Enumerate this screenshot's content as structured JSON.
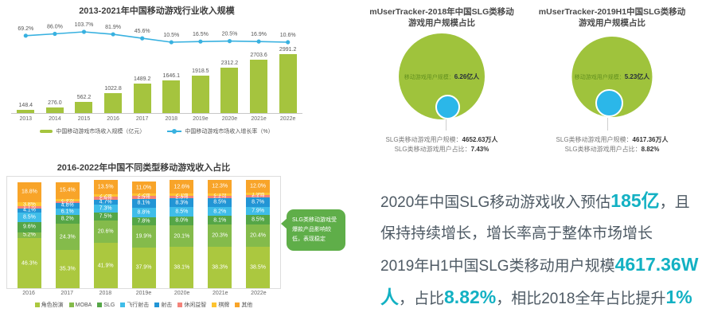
{
  "colors": {
    "brand_green": "#a5c43e",
    "line_blue": "#38b1e0",
    "bubble_green": "#9fc33c",
    "bubble_blue": "#2bb7e9",
    "callout_green": "#5fae49",
    "highlight_teal": "#13b1c3"
  },
  "chart_data": [
    {
      "id": "revenue",
      "type": "bar",
      "title": "2013-2021年中国移动游戏行业收入规模",
      "categories": [
        "2013",
        "2014",
        "2015",
        "2016",
        "2017",
        "2018",
        "2019e",
        "2020e",
        "2021e",
        "2022e"
      ],
      "bar_values": [
        148.4,
        276.0,
        562.2,
        1022.8,
        1489.2,
        1646.1,
        1918.5,
        2312.2,
        2703.6,
        2991.2
      ],
      "bar_labels": [
        "148.4",
        "276.0",
        "562.2",
        "1022.8",
        "1489.2",
        "1646.1",
        "1918.5",
        "2312.2",
        "2703.6",
        "2991.2"
      ],
      "growth_values": [
        69.2,
        86.0,
        103.7,
        81.9,
        45.6,
        10.5,
        16.5,
        20.5,
        16.9,
        10.6
      ],
      "growth_labels": [
        "69.2%",
        "86.0%",
        "103.7%",
        "81.9%",
        "45.6%",
        "10.5%",
        "16.5%",
        "20.5%",
        "16.9%",
        "10.6%"
      ],
      "legend": [
        "中国移动游戏市场收入规模（亿元）",
        "中国移动游戏市场收入增长率（%）"
      ],
      "bar_color": "#a5c43e",
      "line_color": "#38b1e0",
      "ylim": [
        0,
        3000
      ]
    },
    {
      "id": "genre_share",
      "type": "bar",
      "title": "2016-2022年中国不同类型移动游戏收入占比",
      "categories": [
        "2016",
        "2017",
        "2018",
        "2019e",
        "2020e",
        "2021e",
        "2022e"
      ],
      "series": [
        {
          "key": "rpg",
          "name": "角色扮演",
          "color": "#abc83f",
          "values": [
            46.3,
            35.3,
            41.9,
            37.9,
            38.1,
            38.3,
            38.5
          ]
        },
        {
          "key": "moba",
          "name": "MOBA",
          "color": "#84bb4b",
          "values": [
            5.2,
            24.3,
            20.6,
            19.9,
            20.1,
            20.3,
            20.4
          ]
        },
        {
          "key": "slg",
          "name": "SLG",
          "color": "#55a647",
          "values": [
            9.6,
            8.2,
            7.5,
            7.8,
            8.0,
            8.1,
            8.5
          ]
        },
        {
          "key": "fly-shoot",
          "name": "飞行射击",
          "color": "#3fbde9",
          "values": [
            8.5,
            6.1,
            7.3,
            8.8,
            8.5,
            8.2,
            7.9
          ]
        },
        {
          "key": "shoot",
          "name": "射击",
          "color": "#2295d5",
          "values": [
            4.1,
            4.8,
            4.7,
            8.1,
            8.3,
            8.5,
            8.7
          ]
        },
        {
          "key": "casual",
          "name": "休闲益智",
          "color": "#f4837a",
          "values": [
            1.7,
            1.2,
            2.4,
            2.5,
            2.3,
            2.2,
            2.1
          ]
        },
        {
          "key": "chess",
          "name": "棋牌",
          "color": "#fdc330",
          "values": [
            3.8,
            2.9,
            2.2,
            2.2,
            2.1,
            2.1,
            1.9
          ]
        },
        {
          "key": "other",
          "name": "其他",
          "color": "#f8a429",
          "values": [
            18.8,
            15.4,
            13.5,
            11.0,
            12.6,
            12.3,
            12.0
          ]
        }
      ],
      "callout": "SLG类移动游戏受爆款产品影响较低，表现稳定",
      "ylim": [
        0,
        100
      ]
    },
    {
      "id": "slg_users_2018",
      "type": "bubble",
      "title_lines": [
        "mUserTracker-2018年中国SLG类移动",
        "游戏用户规模占比"
      ],
      "total_label": "移动游戏用户规模：",
      "total_value": "6.26亿人",
      "rows": [
        {
          "label": "SLG类移动游戏用户规模：",
          "value": "4652.63万人"
        },
        {
          "label": "SLG类移动游戏用户占比：",
          "value": "7.43%"
        }
      ]
    },
    {
      "id": "slg_users_2019h1",
      "type": "bubble",
      "title_lines": [
        "mUserTracker-2019H1中国SLG类移动",
        "游戏用户规模占比"
      ],
      "total_label": "移动游戏用户规模：",
      "total_value": "5.23亿人",
      "rows": [
        {
          "label": "SLG类移动游戏用户规模：",
          "value": "4617.36万人"
        },
        {
          "label": "SLG类移动游戏用户占比：",
          "value": "8.82%"
        }
      ]
    }
  ],
  "insight": {
    "segments": [
      {
        "t": "2020年中国SLG移动游戏收入预估"
      },
      {
        "t": "185亿",
        "hl": true
      },
      {
        "t": "，且保持持续增长，增长率高于整体市场增长"
      },
      {
        "br": true
      },
      {
        "t": "2019年H1中国SLG类移动用户规模"
      },
      {
        "t": "4617.36W",
        "hl": true
      },
      {
        "t": "人",
        "hl": true
      },
      {
        "t": "，占比"
      },
      {
        "t": "8.82%",
        "hl": true
      },
      {
        "t": "，相比2018全年占比提升"
      },
      {
        "t": "1%",
        "hl": true
      }
    ]
  }
}
